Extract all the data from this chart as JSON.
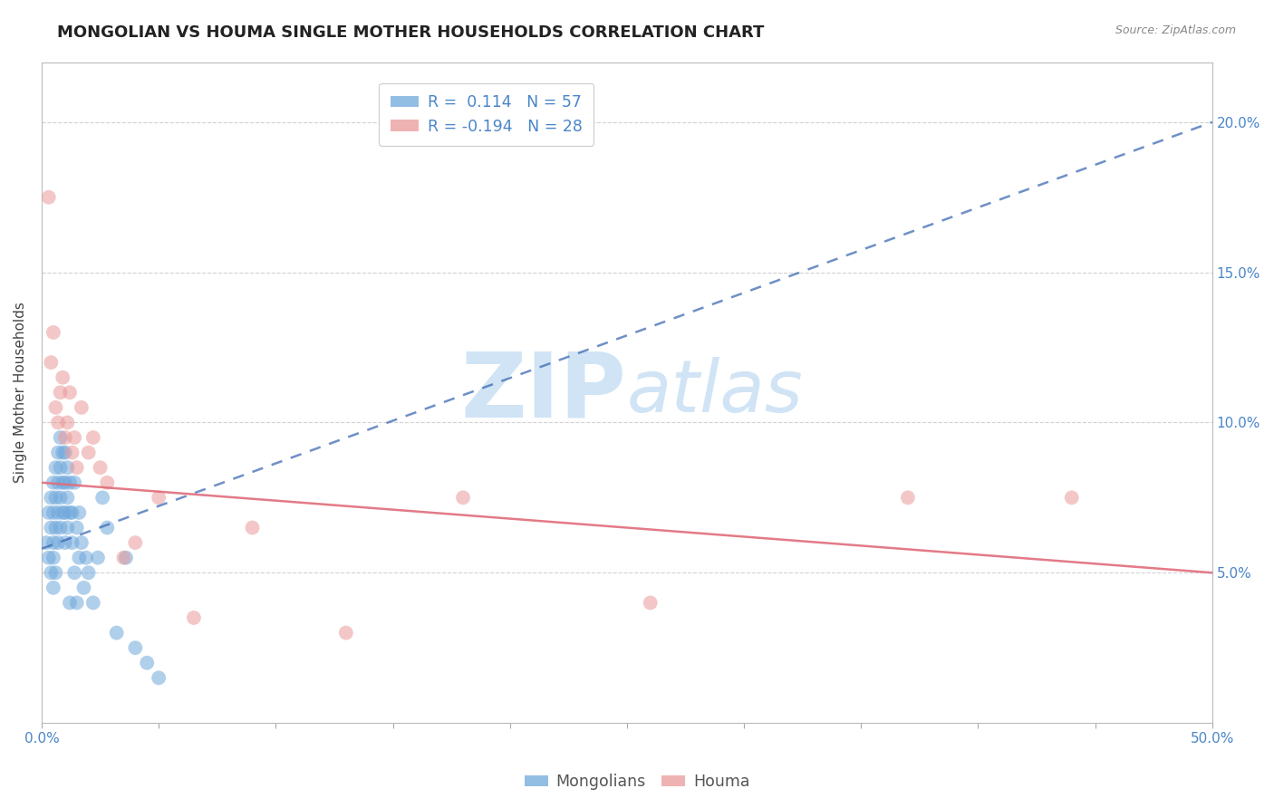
{
  "title": "MONGOLIAN VS HOUMA SINGLE MOTHER HOUSEHOLDS CORRELATION CHART",
  "source": "Source: ZipAtlas.com",
  "ylabel": "Single Mother Households",
  "xlim": [
    0.0,
    0.5
  ],
  "ylim": [
    0.0,
    0.22
  ],
  "xticks": [
    0.0,
    0.05,
    0.1,
    0.15,
    0.2,
    0.25,
    0.3,
    0.35,
    0.4,
    0.45,
    0.5
  ],
  "yticks": [
    0.0,
    0.05,
    0.1,
    0.15,
    0.2
  ],
  "mongolian_color": "#6fa8dc",
  "houma_color": "#ea9999",
  "mongolian_line_color": "#3d6bb3",
  "houma_line_color": "#e06c7a",
  "mongolian_R": 0.114,
  "mongolian_N": 57,
  "houma_R": -0.194,
  "houma_N": 28,
  "background_color": "#ffffff",
  "grid_color": "#cccccc",
  "watermark_zip": "ZIP",
  "watermark_atlas": "atlas",
  "watermark_color": "#d0e4f5",
  "mongolian_x": [
    0.002,
    0.003,
    0.003,
    0.004,
    0.004,
    0.004,
    0.005,
    0.005,
    0.005,
    0.005,
    0.005,
    0.006,
    0.006,
    0.006,
    0.006,
    0.007,
    0.007,
    0.007,
    0.007,
    0.008,
    0.008,
    0.008,
    0.008,
    0.009,
    0.009,
    0.009,
    0.01,
    0.01,
    0.01,
    0.01,
    0.011,
    0.011,
    0.011,
    0.012,
    0.012,
    0.012,
    0.013,
    0.013,
    0.014,
    0.014,
    0.015,
    0.015,
    0.016,
    0.016,
    0.017,
    0.018,
    0.019,
    0.02,
    0.022,
    0.024,
    0.026,
    0.028,
    0.032,
    0.036,
    0.04,
    0.045,
    0.05
  ],
  "mongolian_y": [
    0.06,
    0.055,
    0.07,
    0.065,
    0.05,
    0.075,
    0.045,
    0.06,
    0.07,
    0.055,
    0.08,
    0.05,
    0.065,
    0.075,
    0.085,
    0.06,
    0.07,
    0.08,
    0.09,
    0.065,
    0.075,
    0.085,
    0.095,
    0.07,
    0.08,
    0.09,
    0.06,
    0.07,
    0.08,
    0.09,
    0.065,
    0.075,
    0.085,
    0.07,
    0.08,
    0.04,
    0.06,
    0.07,
    0.08,
    0.05,
    0.065,
    0.04,
    0.055,
    0.07,
    0.06,
    0.045,
    0.055,
    0.05,
    0.04,
    0.055,
    0.075,
    0.065,
    0.03,
    0.055,
    0.025,
    0.02,
    0.015
  ],
  "houma_x": [
    0.003,
    0.004,
    0.005,
    0.006,
    0.007,
    0.008,
    0.009,
    0.01,
    0.011,
    0.012,
    0.013,
    0.014,
    0.015,
    0.017,
    0.02,
    0.022,
    0.025,
    0.028,
    0.035,
    0.04,
    0.05,
    0.065,
    0.09,
    0.13,
    0.18,
    0.26,
    0.37,
    0.44
  ],
  "houma_y": [
    0.175,
    0.12,
    0.13,
    0.105,
    0.1,
    0.11,
    0.115,
    0.095,
    0.1,
    0.11,
    0.09,
    0.095,
    0.085,
    0.105,
    0.09,
    0.095,
    0.085,
    0.08,
    0.055,
    0.06,
    0.075,
    0.035,
    0.065,
    0.03,
    0.075,
    0.04,
    0.075,
    0.075
  ],
  "title_fontsize": 13,
  "axis_label_fontsize": 11,
  "tick_fontsize": 11,
  "legend_fontsize": 12.5
}
